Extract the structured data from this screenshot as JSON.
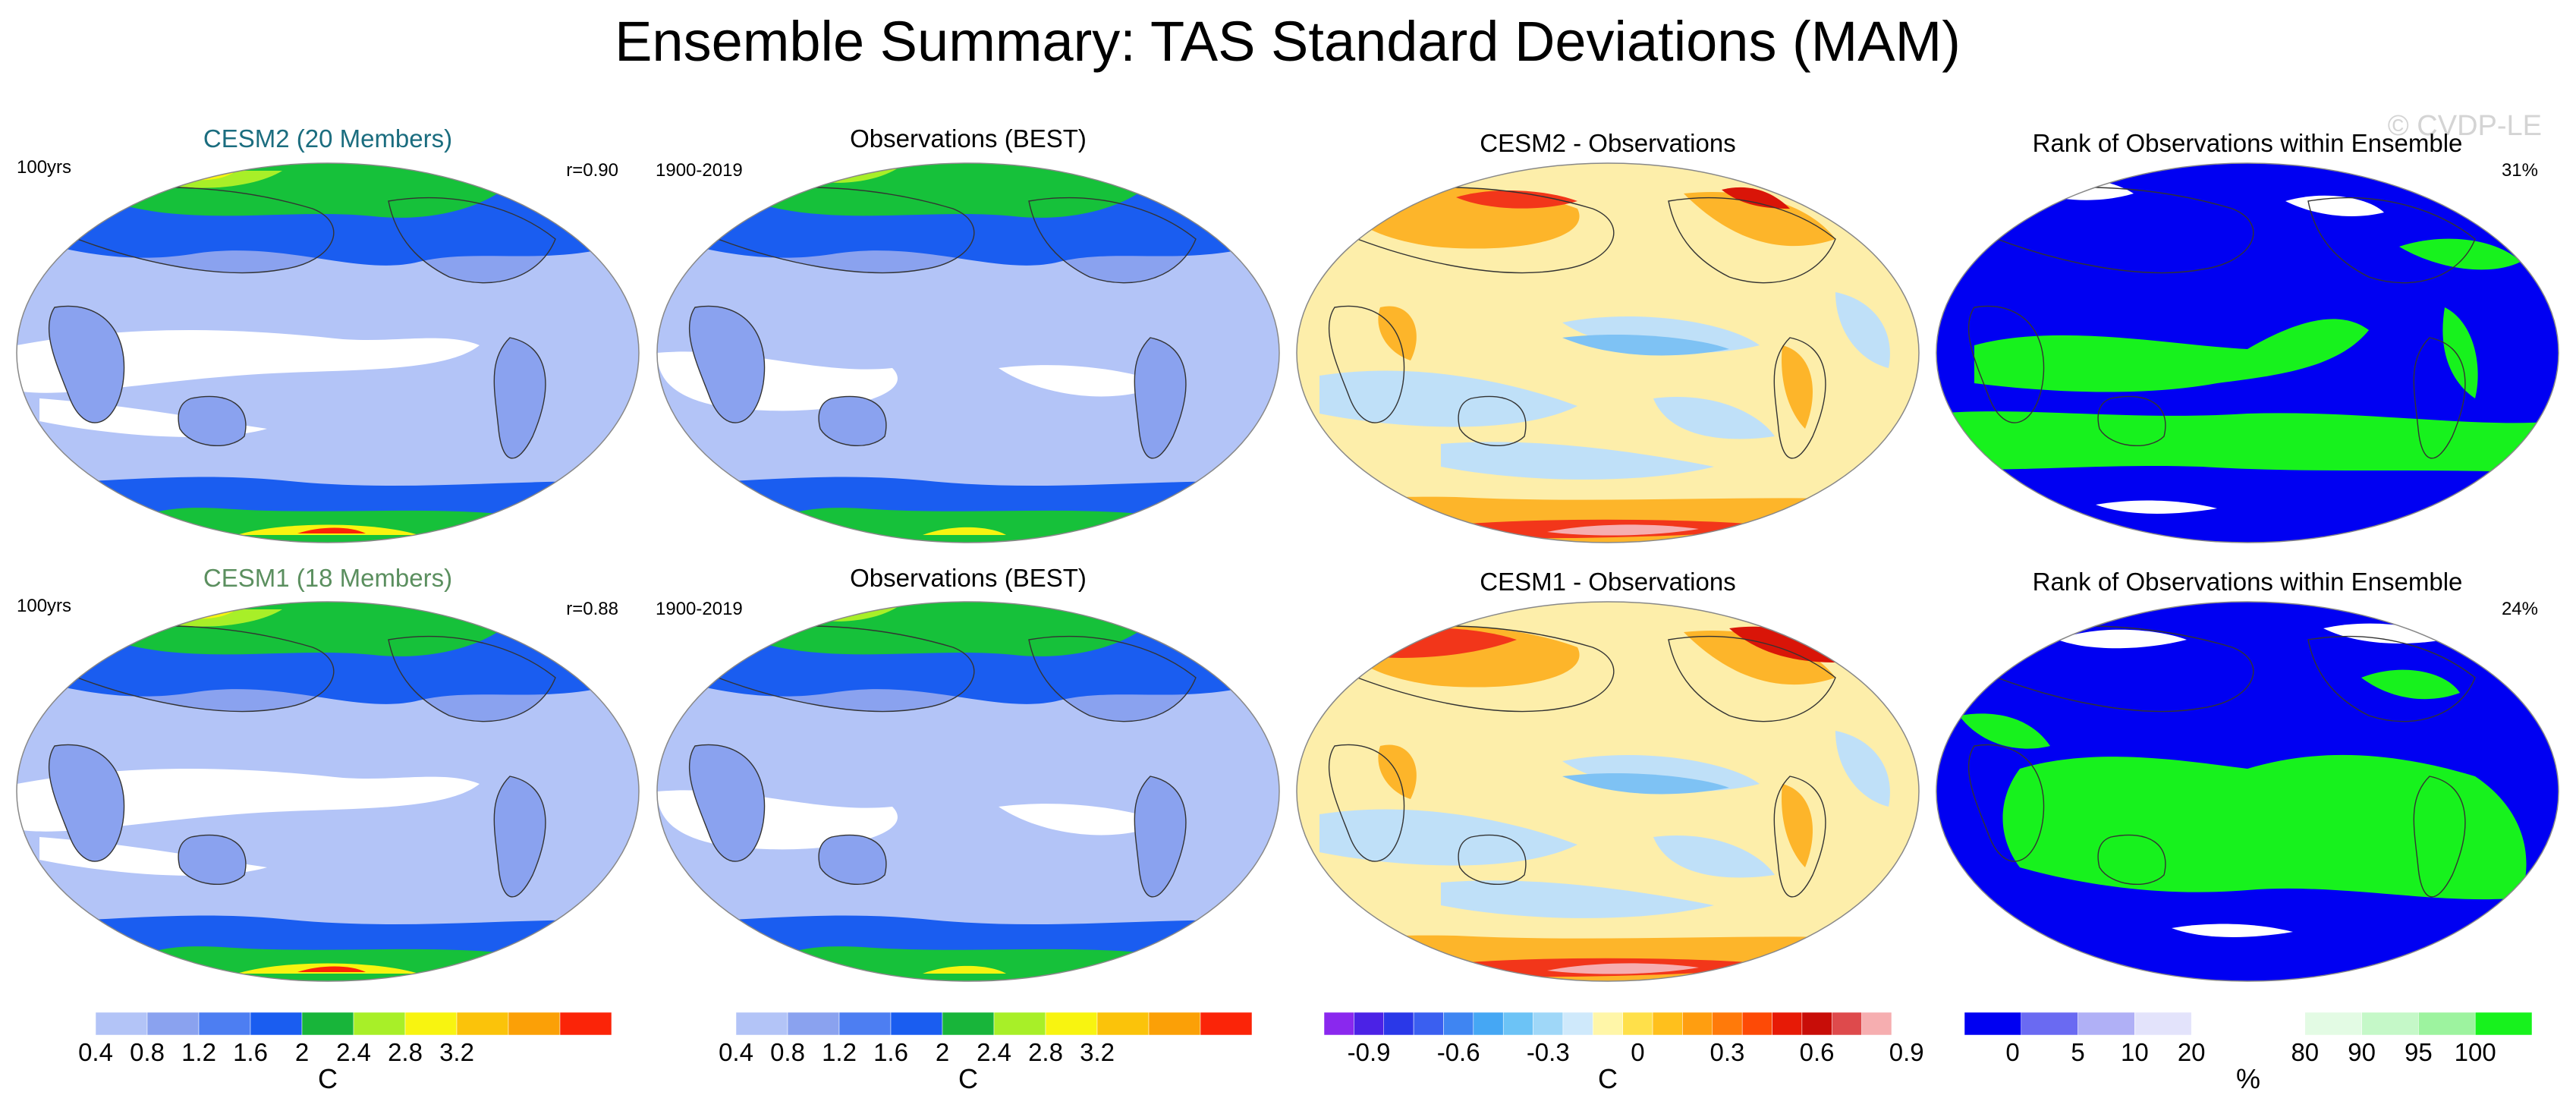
{
  "title": "Ensemble Summary: TAS Standard Deviations (MAM)",
  "watermark": "© CVDP-LE",
  "colors": {
    "ocean_low": "#b3c4f7",
    "low2": "#8aa2ef",
    "mid": "#1a5df0",
    "green": "#16c13a",
    "lime": "#a8ef28",
    "yellow": "#f8f410",
    "orange": "#fba007",
    "red": "#fb2408",
    "rank_blue": "#0000f2",
    "rank_green": "#17f21d",
    "rank_light": "#d9dcf8",
    "coast": "#333333"
  },
  "rows": [
    {
      "panels": [
        {
          "title": "CESM2 (20 Members)",
          "title_color": "#1b6d7f",
          "left_label": "100yrs",
          "right_label": "r=0.90",
          "kind": "sd"
        },
        {
          "title": "Observations (BEST)",
          "title_color": "#000000",
          "left_label": "1900-2019",
          "right_label": "",
          "kind": "obs"
        },
        {
          "title": "CESM2 - Observations",
          "title_color": "#000000",
          "left_label": "",
          "right_label": "",
          "kind": "diff"
        },
        {
          "title": "Rank of Observations within Ensemble",
          "title_color": "#000000",
          "left_label": "",
          "right_label": "31%",
          "kind": "rank"
        }
      ]
    },
    {
      "panels": [
        {
          "title": "CESM1 (18 Members)",
          "title_color": "#5b8f5f",
          "left_label": "100yrs",
          "right_label": "r=0.88",
          "kind": "sd"
        },
        {
          "title": "Observations (BEST)",
          "title_color": "#000000",
          "left_label": "1900-2019",
          "right_label": "",
          "kind": "obs"
        },
        {
          "title": "CESM1 - Observations",
          "title_color": "#000000",
          "left_label": "",
          "right_label": "",
          "kind": "diff"
        },
        {
          "title": "Rank of Observations within Ensemble",
          "title_color": "#000000",
          "left_label": "",
          "right_label": "24%",
          "kind": "rank"
        }
      ]
    }
  ],
  "colorbars": [
    {
      "unit": "C",
      "colors": [
        "#ffffff",
        "#b3c4f7",
        "#8aa2ef",
        "#4d7ef2",
        "#1a5df0",
        "#18b53a",
        "#a8ef28",
        "#f8f410",
        "#fbc30a",
        "#fba007",
        "#fb2408"
      ],
      "labels": [
        "0.4",
        "0.8",
        "1.2",
        "1.6",
        "2",
        "2.4",
        "2.8",
        "3.2"
      ]
    },
    {
      "unit": "C",
      "colors": [
        "#ffffff",
        "#b3c4f7",
        "#8aa2ef",
        "#4d7ef2",
        "#1a5df0",
        "#18b53a",
        "#a8ef28",
        "#f8f410",
        "#fbc30a",
        "#fba007",
        "#fb2408"
      ],
      "labels": [
        "0.4",
        "0.8",
        "1.2",
        "1.6",
        "2",
        "2.4",
        "2.8",
        "3.2"
      ]
    },
    {
      "unit": "C",
      "colors": [
        "#8a28ee",
        "#4b22e6",
        "#2a38e8",
        "#3a5ff0",
        "#3f85f2",
        "#45a7f4",
        "#6cc3f6",
        "#9fd7f8",
        "#cfe9fb",
        "#fff6a8",
        "#ffe04a",
        "#ffc01c",
        "#ff9e10",
        "#ff7a0a",
        "#fd4a06",
        "#e71a06",
        "#c80d08",
        "#de4a4c",
        "#f6aeb0"
      ],
      "labels": [
        "-0.9",
        "-0.6",
        "-0.3",
        "0",
        "0.3",
        "0.6",
        "0.9"
      ]
    },
    {
      "unit": "%",
      "colors": [
        "#0000f2",
        "#6a6af2",
        "#b0b0f6",
        "#e3e3fb",
        "#ffffff",
        "#ffffff",
        "#e3fbe4",
        "#c5f8c8",
        "#9df39f",
        "#17f21d"
      ],
      "labels": [
        "0",
        "5",
        "10",
        "20",
        "80",
        "90",
        "95",
        "100"
      ]
    }
  ],
  "chart_data": {
    "type": "heatmap",
    "description_units": "Standard deviation of surface air temperature (C), Mar–May",
    "panels": [
      {
        "row": 1,
        "col": 1,
        "field": "CESM2 ensemble-mean TAS std dev",
        "range": [
          0,
          3.6
        ]
      },
      {
        "row": 1,
        "col": 2,
        "field": "Observations (BEST) TAS std dev 1900-2019",
        "range": [
          0,
          3.6
        ]
      },
      {
        "row": 1,
        "col": 3,
        "field": "CESM2 - Observations",
        "range": [
          -1.05,
          1.05
        ]
      },
      {
        "row": 1,
        "col": 4,
        "field": "Rank of observations within ensemble (%)",
        "value_summary": "31%"
      },
      {
        "row": 2,
        "col": 1,
        "field": "CESM1 ensemble-mean TAS std dev",
        "range": [
          0,
          3.6
        ]
      },
      {
        "row": 2,
        "col": 2,
        "field": "Observations (BEST) TAS std dev 1900-2019",
        "range": [
          0,
          3.6
        ]
      },
      {
        "row": 2,
        "col": 3,
        "field": "CESM1 - Observations",
        "range": [
          -1.05,
          1.05
        ]
      },
      {
        "row": 2,
        "col": 4,
        "field": "Rank of observations within ensemble (%)",
        "value_summary": "24%"
      }
    ],
    "pattern_correlation": {
      "CESM2": 0.9,
      "CESM1": 0.88
    }
  }
}
